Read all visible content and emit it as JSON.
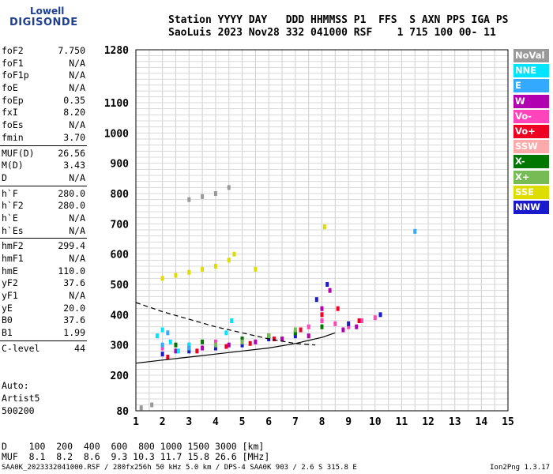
{
  "logo": {
    "top": "Lowell",
    "bottom": "DIGISONDE"
  },
  "header": {
    "line1": "Station YYYY DAY   DDD HHMMSS P1  FFS  S AXN PPS IGA PS",
    "line2": "SaoLuis 2023 Nov28 332 041000 RSF    1 715 100 00- 11"
  },
  "params": [
    {
      "name": "foF2",
      "value": "7.750"
    },
    {
      "name": "foF1",
      "value": "N/A"
    },
    {
      "name": "foF1p",
      "value": "N/A"
    },
    {
      "name": "foE",
      "value": "N/A"
    },
    {
      "name": "foEp",
      "value": "0.35"
    },
    {
      "name": "fxI",
      "value": "8.20"
    },
    {
      "name": "foEs",
      "value": "N/A"
    },
    {
      "name": "fmin",
      "value": "3.70"
    },
    {
      "name": "MUF(D)",
      "value": "26.56"
    },
    {
      "name": "M(D)",
      "value": "3.43"
    },
    {
      "name": "D",
      "value": "N/A"
    },
    {
      "name": "h`F",
      "value": "280.0"
    },
    {
      "name": "h`F2",
      "value": "280.0"
    },
    {
      "name": "h`E",
      "value": "N/A"
    },
    {
      "name": "h`Es",
      "value": "N/A"
    },
    {
      "name": "hmF2",
      "value": "299.4"
    },
    {
      "name": "hmF1",
      "value": "N/A"
    },
    {
      "name": "hmE",
      "value": "110.0"
    },
    {
      "name": "yF2",
      "value": "37.6"
    },
    {
      "name": "yF1",
      "value": "N/A"
    },
    {
      "name": "yE",
      "value": "20.0"
    },
    {
      "name": "B0",
      "value": "37.6"
    },
    {
      "name": "B1",
      "value": "1.99"
    },
    {
      "name": "C-level",
      "value": "44"
    }
  ],
  "auto": {
    "line1": "Auto:",
    "line2": "Artist5",
    "line3": "500200"
  },
  "muf_table": {
    "line1": "D    100  200  400  600  800 1000 1500 3000 [km]",
    "line2": "MUF  8.1  8.2  8.6  9.3 10.3 11.7 15.8 26.6 [MHz]"
  },
  "footer": "SAA0K_2023332041000.RSF / 280fx256h 50 kHz 5.0 km / DPS-4 SAA0K 903 / 2.6 S 315.8 E",
  "version": "Ion2Png 1.3.17",
  "legend": [
    {
      "label": "NoVal",
      "color": "#999999"
    },
    {
      "label": "NNE",
      "color": "#00e5ff"
    },
    {
      "label": "E",
      "color": "#33aaff"
    },
    {
      "label": "W",
      "color": "#b000b0"
    },
    {
      "label": "Vo-",
      "color": "#ff44bb"
    },
    {
      "label": "Vo+",
      "color": "#ee0022"
    },
    {
      "label": "SSW",
      "color": "#ffaaaa"
    },
    {
      "label": "X-",
      "color": "#007700"
    },
    {
      "label": "X+",
      "color": "#77bb55"
    },
    {
      "label": "SSE",
      "color": "#dddd00"
    },
    {
      "label": "NNW",
      "color": "#1a1acc"
    }
  ],
  "chart_data": {
    "type": "scatter",
    "xlim": [
      1,
      15
    ],
    "ylim": [
      80,
      1280
    ],
    "x_ticks": [
      1,
      2,
      3,
      4,
      5,
      6,
      7,
      8,
      9,
      10,
      11,
      12,
      13,
      14,
      15
    ],
    "y_ticks": [
      80,
      200,
      300,
      400,
      500,
      600,
      700,
      800,
      900,
      1000,
      1100,
      1280
    ],
    "y_scale": "nonlinear",
    "grid": true,
    "legend_position": "right",
    "series": [
      {
        "color": "#ff44bb",
        "points": [
          [
            2,
            290
          ],
          [
            3,
            300
          ],
          [
            4,
            310
          ],
          [
            5,
            320
          ],
          [
            6,
            330
          ],
          [
            7,
            340
          ],
          [
            7.5,
            360
          ],
          [
            8,
            380
          ],
          [
            8.5,
            370
          ],
          [
            9,
            360
          ],
          [
            9.5,
            380
          ],
          [
            10,
            390
          ]
        ]
      },
      {
        "color": "#b000b0",
        "points": [
          [
            2.5,
            280
          ],
          [
            3.5,
            290
          ],
          [
            4.5,
            300
          ],
          [
            5.5,
            310
          ],
          [
            6.5,
            320
          ],
          [
            7.5,
            330
          ],
          [
            8,
            420
          ],
          [
            8.3,
            480
          ],
          [
            8.8,
            350
          ],
          [
            9.3,
            360
          ]
        ]
      },
      {
        "color": "#1a1acc",
        "points": [
          [
            2,
            270
          ],
          [
            3,
            280
          ],
          [
            4,
            290
          ],
          [
            5,
            300
          ],
          [
            6,
            320
          ],
          [
            7,
            330
          ],
          [
            7.8,
            450
          ],
          [
            8.2,
            500
          ],
          [
            9,
            370
          ],
          [
            10.2,
            400
          ]
        ]
      },
      {
        "color": "#ee0022",
        "points": [
          [
            2.2,
            260
          ],
          [
            3.3,
            280
          ],
          [
            4.4,
            295
          ],
          [
            5.3,
            305
          ],
          [
            6.2,
            320
          ],
          [
            7.2,
            350
          ],
          [
            8,
            400
          ],
          [
            8.6,
            420
          ],
          [
            9.4,
            380
          ]
        ]
      },
      {
        "color": "#00e5ff",
        "points": [
          [
            1.8,
            330
          ],
          [
            2,
            350
          ],
          [
            2.3,
            310
          ],
          [
            2.6,
            280
          ],
          [
            3,
            300
          ],
          [
            4.4,
            340
          ],
          [
            4.6,
            380
          ]
        ]
      },
      {
        "color": "#dddd00",
        "points": [
          [
            2,
            520
          ],
          [
            2.5,
            530
          ],
          [
            3,
            540
          ],
          [
            3.5,
            550
          ],
          [
            4,
            560
          ],
          [
            4.5,
            580
          ],
          [
            4.7,
            600
          ],
          [
            5.5,
            550
          ],
          [
            8.1,
            690
          ]
        ]
      },
      {
        "color": "#007700",
        "points": [
          [
            2.5,
            300
          ],
          [
            3.5,
            310
          ],
          [
            5,
            320
          ],
          [
            6,
            330
          ],
          [
            7,
            340
          ],
          [
            8,
            360
          ]
        ]
      },
      {
        "color": "#77bb55",
        "points": [
          [
            3,
            290
          ],
          [
            4,
            300
          ],
          [
            5,
            310
          ],
          [
            6,
            330
          ],
          [
            7,
            350
          ]
        ]
      },
      {
        "color": "#33aaff",
        "points": [
          [
            2,
            300
          ],
          [
            2.2,
            340
          ],
          [
            3,
            290
          ],
          [
            11.5,
            675
          ]
        ]
      },
      {
        "color": "#999999",
        "points": [
          [
            1.2,
            90
          ],
          [
            1.6,
            100
          ],
          [
            3,
            780
          ],
          [
            3.5,
            790
          ],
          [
            4,
            800
          ],
          [
            4.5,
            820
          ]
        ]
      }
    ],
    "traces": [
      {
        "name": "virtual height trace",
        "points": [
          [
            1,
            240
          ],
          [
            2,
            250
          ],
          [
            3,
            260
          ],
          [
            4,
            270
          ],
          [
            5,
            280
          ],
          [
            6,
            290
          ],
          [
            7,
            305
          ],
          [
            8,
            325
          ],
          [
            8.5,
            340
          ]
        ]
      },
      {
        "name": "profile",
        "points": [
          [
            1,
            440
          ],
          [
            2,
            410
          ],
          [
            3,
            385
          ],
          [
            4,
            360
          ],
          [
            5,
            340
          ],
          [
            6,
            320
          ],
          [
            7,
            305
          ],
          [
            7.75,
            300
          ]
        ]
      }
    ]
  }
}
